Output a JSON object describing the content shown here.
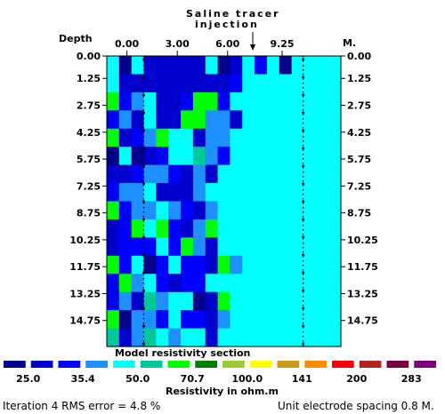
{
  "chart_data": {
    "type": "heatmap",
    "title": "Model resistivity section",
    "annotation": {
      "line1": "Saline tracer",
      "line2": "injection"
    },
    "ylabel": "Depth",
    "xunit": "M.",
    "x_ticks": [
      0.0,
      3.0,
      6.0,
      9.25
    ],
    "x_tick_labels": [
      "0.00",
      "3.00",
      "6.00",
      "9.25"
    ],
    "injection_x": 7.5,
    "y_ticks": [
      "0.00",
      "1.25",
      "2.75",
      "4.25",
      "5.75",
      "7.25",
      "8.75",
      "10.25",
      "11.75",
      "13.25",
      "14.75"
    ],
    "x_range": [
      -1.2,
      12.75
    ],
    "y_range": [
      0,
      16.2
    ],
    "borehole_x": [
      1.0,
      10.5
    ],
    "columns": 19,
    "rows": 16,
    "palette": [
      "#00008b",
      "#0000cd",
      "#0000ff",
      "#1e90ff",
      "#00ffff",
      "#00c896",
      "#00ff00",
      "#008000",
      "#9acd32",
      "#ffff00",
      "#cd9b1d",
      "#ff8c00",
      "#ff0000",
      "#b22222",
      "#800040",
      "#800080"
    ],
    "colorbar_ticks": [
      "25.0",
      "35.4",
      "50.0",
      "70.7",
      "100.0",
      "141",
      "200",
      "283"
    ],
    "colorbar_label": "Resistivity in ohm.m",
    "cells": [
      "ea bbbbb ab c a",
      "ebbbbbbbbbc",
      "gcd bbcggc",
      "cdb bbggddb",
      "gbcdg  bdd",
      "aeabc  fdc",
      "bbcddcbdb",
      "cdd bbbde",
      "gcdd dcbd e",
      "bcg gcbdg",
      "bccc cgdb",
      "gc ac ccbgd",
      "cgd cbcc",
      "cdbfdeeabg",
      "gaddc ccbd",
      "fbdf deeb"
    ]
  },
  "footer": {
    "iteration": "Iteration 4 RMS error = 4.8 %",
    "spacing": "Unit electrode spacing 0.8 M."
  }
}
